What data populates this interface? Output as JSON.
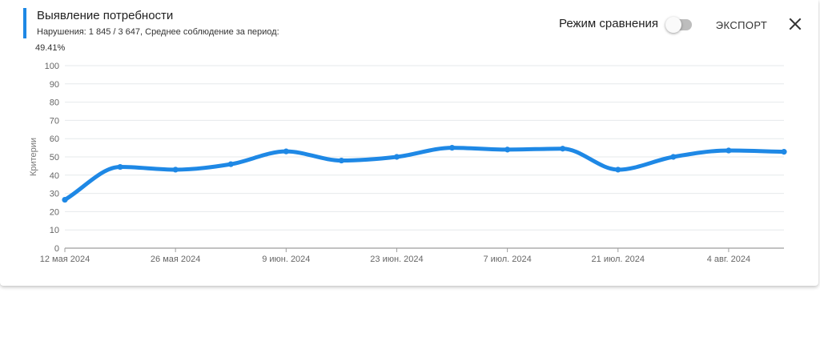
{
  "header": {
    "title": "Выявление потребности",
    "subtitle": "Нарушения: 1 845 / 3 647, Среднее соблюдение за период:",
    "subtitle_value": "49.41%",
    "compare_label": "Режим сравнения",
    "compare_enabled": false,
    "export_label": "ЭКСПОРТ",
    "close_icon": "close-icon",
    "accent_color": "#1e88e5"
  },
  "chart_data": {
    "type": "line",
    "ylabel": "Критерии",
    "xlabel": "",
    "ylim": [
      0,
      100
    ],
    "y_ticks": [
      0,
      10,
      20,
      30,
      40,
      50,
      60,
      70,
      80,
      90,
      100
    ],
    "x_tick_labels": [
      "12 мая 2024",
      "26 мая 2024",
      "9 июн. 2024",
      "23 июн. 2024",
      "7 июл. 2024",
      "21 июл. 2024",
      "4 авг. 2024"
    ],
    "x_start": "2024-05-12",
    "x": [
      "2024-05-12",
      "2024-05-19",
      "2024-05-26",
      "2024-06-02",
      "2024-06-09",
      "2024-06-16",
      "2024-06-23",
      "2024-06-30",
      "2024-07-07",
      "2024-07-14",
      "2024-07-21",
      "2024-07-28",
      "2024-08-04",
      "2024-08-11"
    ],
    "grid": true,
    "series": [
      {
        "color": "#1e88e5",
        "values": [
          26.5,
          44.5,
          43.0,
          46.0,
          53.0,
          48.0,
          50.0,
          55.0,
          54.0,
          54.5,
          43.0,
          50.0,
          53.5,
          52.8
        ]
      }
    ]
  }
}
